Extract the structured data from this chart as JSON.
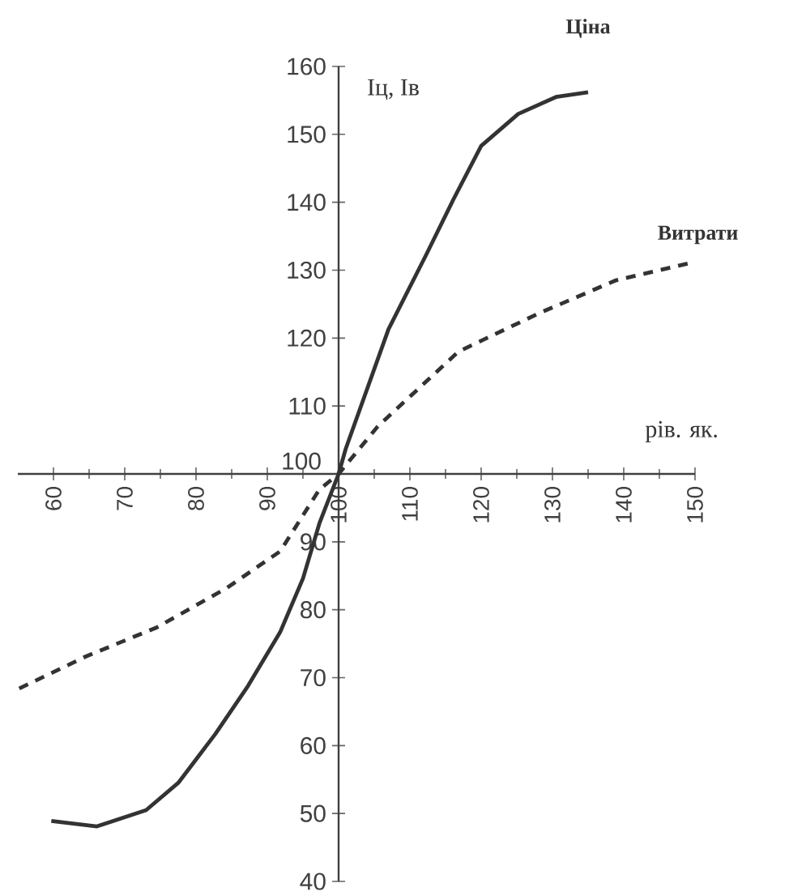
{
  "chart_data": {
    "type": "line",
    "xlabel": "рів. як.",
    "ylabel": "Іц, Ів",
    "xlim": [
      55,
      150
    ],
    "ylim": [
      40,
      160
    ],
    "xticks": [
      60,
      70,
      80,
      90,
      100,
      110,
      120,
      130,
      140,
      150
    ],
    "yticks": [
      40,
      50,
      60,
      70,
      80,
      90,
      100,
      110,
      120,
      130,
      140,
      150,
      160
    ],
    "grid": false,
    "legend": false,
    "marker": "none",
    "series": [
      {
        "name": "Ціна",
        "color": "#333333",
        "line_style": "solid",
        "x": [
          59.7,
          66.1,
          73,
          77.5,
          82.7,
          87.3,
          91.8,
          95,
          97.3,
          100,
          101,
          107,
          112.3,
          116.1,
          120,
          125.2,
          130.5,
          135
        ],
        "values": [
          48.9,
          48.1,
          50.5,
          54.5,
          61.7,
          68.8,
          76.7,
          84.6,
          92.7,
          100,
          103.7,
          121.3,
          132.3,
          140.4,
          148.3,
          153,
          155.5,
          156.2
        ]
      },
      {
        "name": "Витрати",
        "color": "#333333",
        "line_style": "dashed",
        "x": [
          55.2,
          64.5,
          74.5,
          84.3,
          91.8,
          97.3,
          100,
          105.5,
          116.8,
          128.2,
          138.9,
          149.5
        ],
        "values": [
          68.4,
          73.1,
          77.4,
          83.2,
          88.6,
          97.7,
          100,
          107,
          118,
          123.7,
          128.5,
          131.1
        ]
      }
    ]
  }
}
